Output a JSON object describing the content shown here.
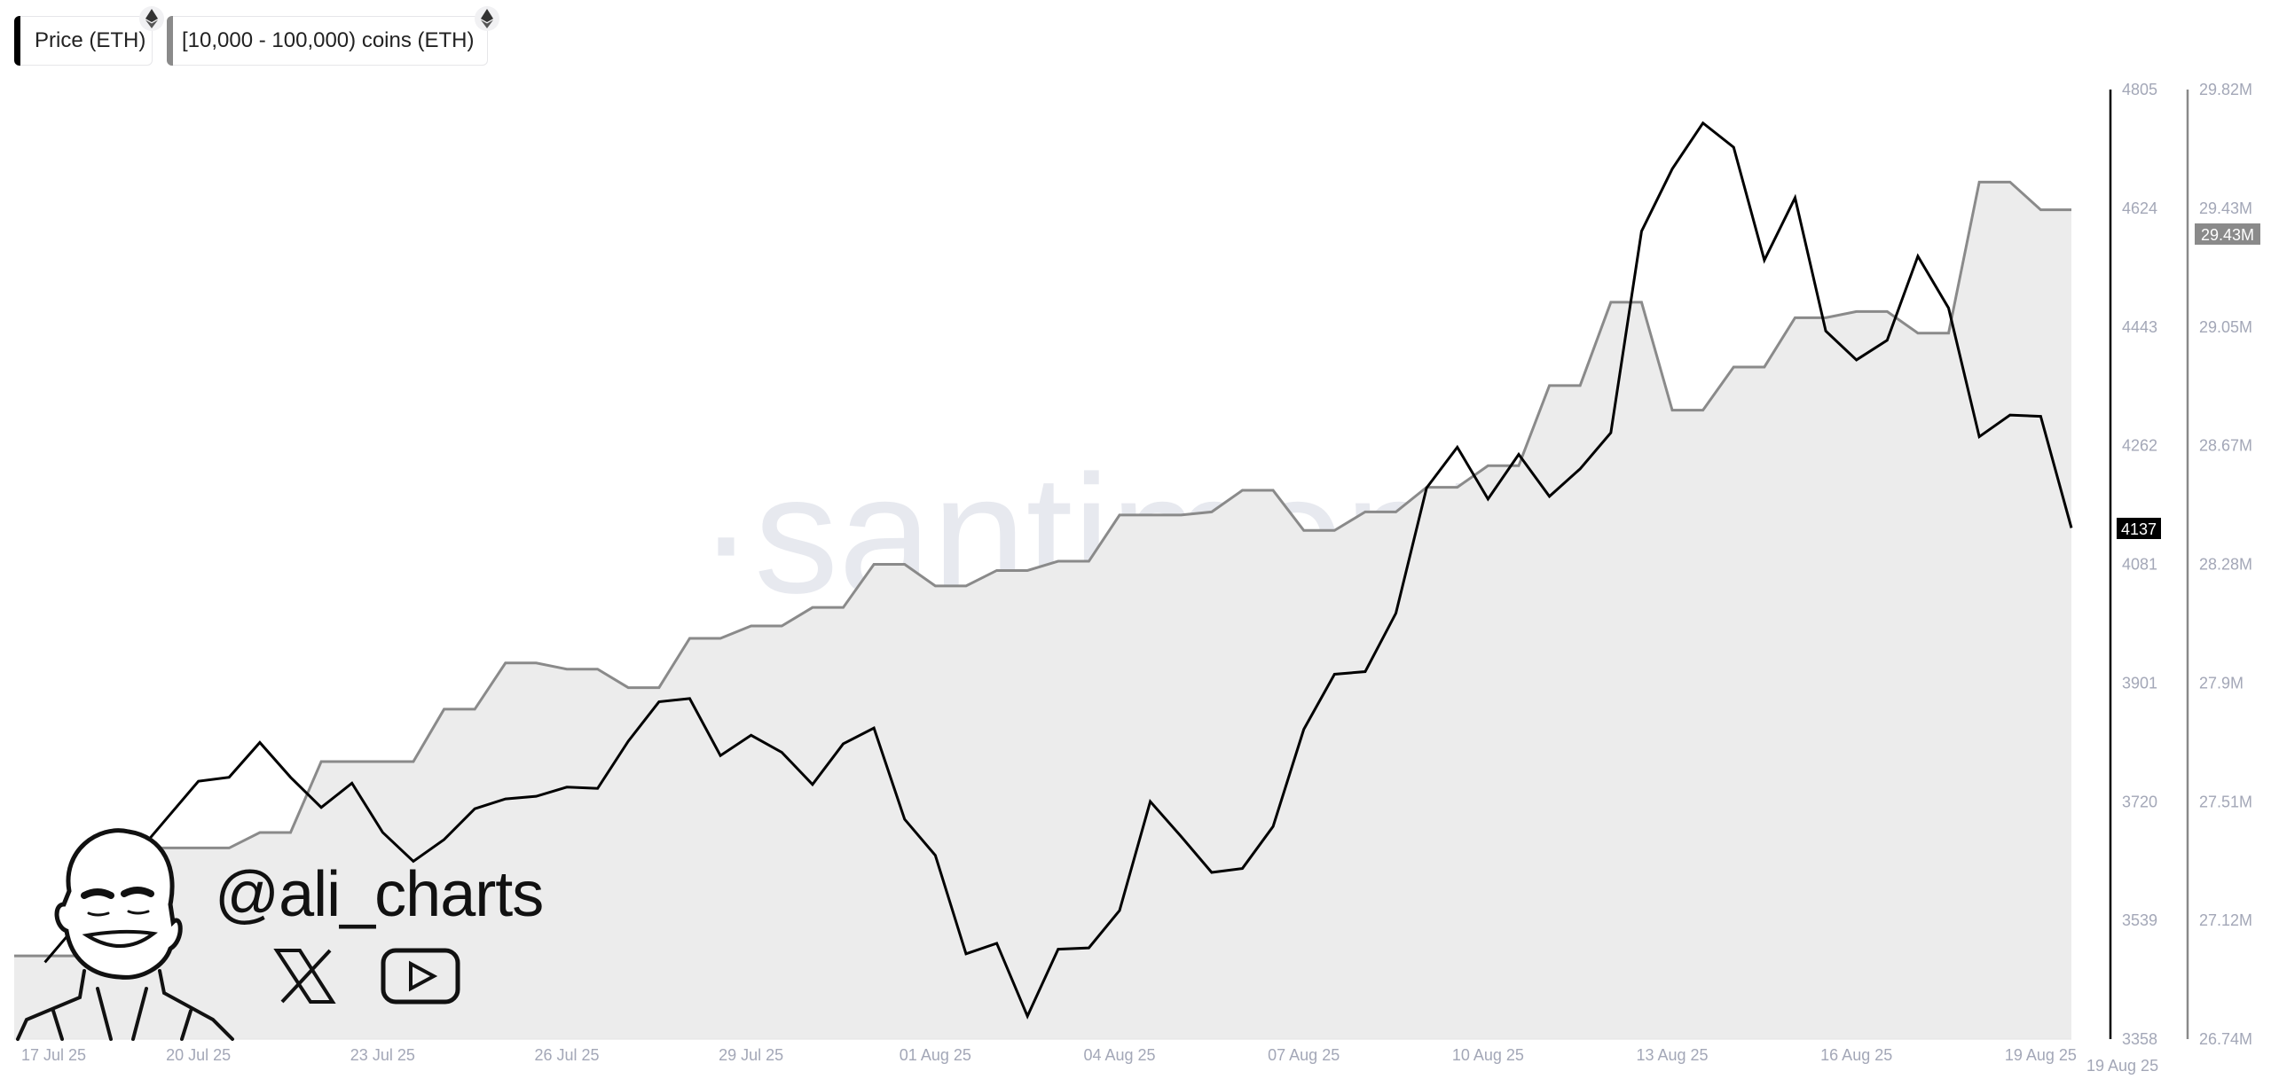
{
  "legend": [
    {
      "label": "Price (ETH)",
      "color": "#000000",
      "icon": "ethereum-icon"
    },
    {
      "label": "[10,000 - 100,000) coins (ETH)",
      "color": "#8a8a8a",
      "icon": "ethereum-icon"
    }
  ],
  "watermark": "·santiment·",
  "branding": {
    "handle": "@ali_charts",
    "icons": [
      "avatar-illustration",
      "x-logo-icon",
      "youtube-icon"
    ]
  },
  "colors": {
    "price": "#000000",
    "holdings": "#8a8a8a",
    "fill": "#ececec",
    "tick": "#a3a7b7"
  },
  "chart_data": {
    "type": "line",
    "x_start": "2025-07-17T00:00",
    "interval_hours": 12,
    "x_tick_labels": [
      "17 Jul 25",
      "20 Jul 25",
      "23 Jul 25",
      "26 Jul 25",
      "29 Jul 25",
      "01 Aug 25",
      "04 Aug 25",
      "07 Aug 25",
      "10 Aug 25",
      "13 Aug 25",
      "16 Aug 25",
      "19 Aug 25"
    ],
    "x_cursor_label": "19 Aug 25",
    "y_left": {
      "ticks": [
        "4805",
        "4624",
        "4443",
        "4262",
        "4081",
        "3901",
        "3720",
        "3539",
        "3358"
      ],
      "range": [
        3358,
        4805
      ],
      "current_label": "4137"
    },
    "y_right": {
      "ticks": [
        "29.82M",
        "29.43M",
        "29.05M",
        "28.67M",
        "28.28M",
        "27.9M",
        "27.51M",
        "27.12M",
        "26.74M"
      ],
      "range": [
        26.74,
        29.82
      ],
      "unit": "M",
      "current_label": "29.43M"
    },
    "grid": false,
    "legend_position": "top-left",
    "series": [
      {
        "name": "Price (ETH)",
        "axis": "left",
        "color": "#000000",
        "values": [
          null,
          3475,
          3530,
          3586,
          3641,
          3696,
          3751,
          3757,
          3810,
          3757,
          3711,
          3748,
          3673,
          3629,
          3662,
          3709,
          3724,
          3728,
          3742,
          3740,
          3812,
          3872,
          3877,
          3790,
          3821,
          3795,
          3746,
          3808,
          3832,
          3693,
          3638,
          3488,
          3504,
          3393,
          3495,
          3497,
          3554,
          3720,
          3667,
          3612,
          3618,
          3682,
          3830,
          3914,
          3918,
          4007,
          4198,
          4260,
          4181,
          4249,
          4185,
          4227,
          4282,
          4589,
          4684,
          4754,
          4717,
          4545,
          4640,
          4437,
          4393,
          4423,
          4551,
          4472,
          4276,
          4309,
          4307,
          4137
        ]
      },
      {
        "name": "[10,000 - 100,000) coins (ETH)",
        "axis": "right",
        "color": "#8a8a8a",
        "fill": true,
        "values": [
          27.01,
          27.01,
          27.01,
          27.01,
          27.36,
          27.36,
          27.36,
          27.36,
          27.41,
          27.41,
          27.64,
          27.64,
          27.64,
          27.64,
          27.81,
          27.81,
          27.96,
          27.96,
          27.94,
          27.94,
          27.88,
          27.88,
          28.04,
          28.04,
          28.08,
          28.08,
          28.14,
          28.14,
          28.28,
          28.28,
          28.21,
          28.21,
          28.26,
          28.26,
          28.29,
          28.29,
          28.44,
          28.44,
          28.44,
          28.45,
          28.52,
          28.52,
          28.39,
          28.39,
          28.45,
          28.45,
          28.53,
          28.53,
          28.6,
          28.6,
          28.86,
          28.86,
          29.13,
          29.13,
          28.78,
          28.78,
          28.92,
          28.92,
          29.08,
          29.08,
          29.1,
          29.1,
          29.03,
          29.03,
          29.52,
          29.52,
          29.43,
          29.43
        ]
      }
    ]
  }
}
